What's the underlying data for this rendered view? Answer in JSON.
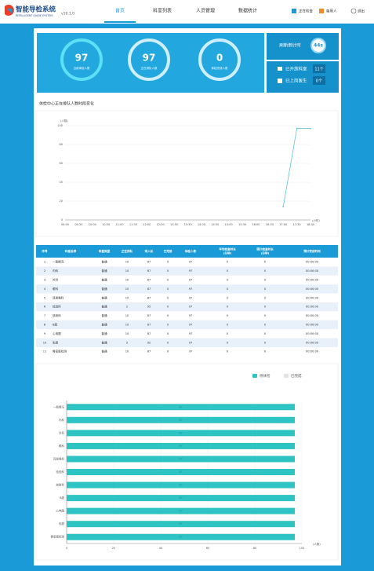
{
  "header": {
    "title": "智能导检系统",
    "subtitle": "INTELLIGENT GUIDE SYSTEM",
    "version": "v10.1.0",
    "nav": [
      "首页",
      "科室列表",
      "人员管理",
      "数据统计"
    ],
    "status": [
      "正在检查",
      "备用人"
    ],
    "logout": "退出"
  },
  "stats": {
    "rings": [
      {
        "value": "97",
        "label": "当前体检人数"
      },
      {
        "value": "97",
        "label": "正在排队人数"
      },
      {
        "value": "0",
        "label": "体检完成人数"
      }
    ],
    "countdown_label": "刷新倒计时",
    "countdown": "44s",
    "open_label": "已开放科室",
    "open": "11个",
    "doctor_label": "已上岗医生",
    "doctors": "0个"
  },
  "chart_data": [
    {
      "type": "line",
      "title": "体检中心正在排队人数时段变化",
      "y_label": "(人数)",
      "x_label": "(小时)",
      "categories": [
        "09:00",
        "09:30",
        "10:00",
        "10:30",
        "11:00",
        "11:30",
        "12:00",
        "12:30",
        "13:00",
        "13:30",
        "14:00",
        "14:30",
        "15:00",
        "15:30",
        "16:00",
        "16:30",
        "17:00",
        "17:30",
        "18:00"
      ],
      "series": [
        {
          "name": "正在排队人数",
          "color": "#5bc4d6",
          "values": [
            null,
            null,
            null,
            null,
            null,
            null,
            null,
            null,
            null,
            null,
            null,
            null,
            null,
            null,
            null,
            null,
            14,
            97,
            97
          ]
        }
      ],
      "ylim": [
        0,
        100
      ],
      "yticks": [
        0,
        20,
        40,
        60,
        80,
        100
      ],
      "grid": true
    },
    {
      "type": "hbar",
      "x_label": "(人数)",
      "categories": [
        "一般情况",
        "内科",
        "外科",
        "眼科",
        "耳鼻喉科",
        "检验科",
        "放射科",
        "B超",
        "心电图",
        "彩超",
        "骨密度检测"
      ],
      "series": [
        {
          "name": "待体检",
          "color": "#2ec4c4",
          "values": [
            97,
            97,
            97,
            97,
            97,
            97,
            97,
            97,
            97,
            97,
            97
          ]
        },
        {
          "name": "已完成",
          "color": "#e2e2e2",
          "values": [
            0,
            0,
            0,
            0,
            0,
            0,
            0,
            0,
            0,
            0,
            0
          ]
        }
      ],
      "xlim": [
        0,
        100
      ],
      "xticks": [
        0,
        20,
        40,
        60,
        80,
        100
      ],
      "grid": true
    }
  ],
  "table": {
    "headers": [
      [
        "序号"
      ],
      [
        "科室名称"
      ],
      [
        "科室类型"
      ],
      [
        "正在排队"
      ],
      [
        "待入队"
      ],
      [
        "已完成"
      ],
      [
        "体检人数"
      ],
      [
        "平均检查时长",
        "(分钟)"
      ],
      [
        "预计检查时长",
        "(分钟)"
      ],
      [
        "预计完成时间"
      ]
    ],
    "rows": [
      [
        "1",
        "一般情况",
        "普通",
        "10",
        "87",
        "0",
        "97",
        "0",
        "0",
        "00:00:00"
      ],
      [
        "2",
        "内科",
        "普通",
        "10",
        "87",
        "0",
        "97",
        "0",
        "0",
        "00:00:00"
      ],
      [
        "3",
        "外科",
        "普通",
        "10",
        "87",
        "0",
        "97",
        "0",
        "0",
        "00:00:00"
      ],
      [
        "4",
        "眼科",
        "普通",
        "10",
        "87",
        "0",
        "97",
        "0",
        "0",
        "00:00:00"
      ],
      [
        "5",
        "耳鼻喉科",
        "普通",
        "10",
        "87",
        "0",
        "97",
        "0",
        "0",
        "00:00:00"
      ],
      [
        "6",
        "检验科",
        "普通",
        "2",
        "95",
        "0",
        "97",
        "0",
        "0",
        "00:00:00"
      ],
      [
        "7",
        "放射科",
        "普通",
        "10",
        "87",
        "0",
        "97",
        "0",
        "0",
        "00:00:00"
      ],
      [
        "8",
        "B超",
        "普通",
        "10",
        "87",
        "0",
        "97",
        "0",
        "0",
        "00:00:00"
      ],
      [
        "9",
        "心电图",
        "普通",
        "10",
        "87",
        "0",
        "97",
        "0",
        "0",
        "00:00:00"
      ],
      [
        "10",
        "彩超",
        "普通",
        "5",
        "92",
        "0",
        "97",
        "0",
        "0",
        "00:00:00"
      ],
      [
        "11",
        "骨密度检测",
        "普通",
        "10",
        "87",
        "0",
        "97",
        "0",
        "0",
        "00:00:00"
      ]
    ]
  }
}
